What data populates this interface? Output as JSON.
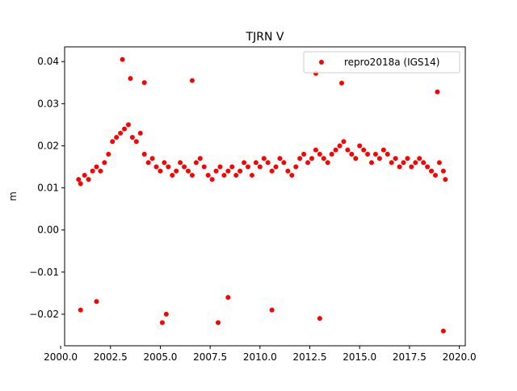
{
  "chart_data": {
    "type": "scatter",
    "title": "TJRN V",
    "xlabel": "",
    "ylabel": "m",
    "xlim": [
      2000.2,
      2020.3
    ],
    "ylim": [
      -0.0275,
      0.0435
    ],
    "xticks": [
      2000.0,
      2002.5,
      2005.0,
      2007.5,
      2010.0,
      2012.5,
      2015.0,
      2017.5,
      2020.0
    ],
    "xtick_labels": [
      "2000.0",
      "2002.5",
      "2005.0",
      "2007.5",
      "2010.0",
      "2012.5",
      "2015.0",
      "2017.5",
      "2020.0"
    ],
    "yticks": [
      -0.02,
      -0.01,
      0.0,
      0.01,
      0.02,
      0.03,
      0.04
    ],
    "ytick_labels": [
      "−0.02",
      "−0.01",
      "0.00",
      "0.01",
      "0.02",
      "0.03",
      "0.04"
    ],
    "grid": false,
    "legend_position": "upper-right",
    "series": [
      {
        "name": "repro2018a (IGS14)",
        "color": "#ff0000",
        "marker": "circle",
        "x": [
          2000.9,
          2001.0,
          2001.2,
          2001.4,
          2001.6,
          2001.8,
          2002.0,
          2002.2,
          2002.4,
          2002.6,
          2002.8,
          2003.0,
          2003.2,
          2003.4,
          2003.6,
          2003.8,
          2004.0,
          2004.2,
          2004.4,
          2004.6,
          2004.8,
          2005.0,
          2005.2,
          2005.4,
          2005.6,
          2005.8,
          2006.0,
          2006.2,
          2006.4,
          2006.6,
          2006.8,
          2007.0,
          2007.2,
          2007.4,
          2007.6,
          2007.8,
          2008.0,
          2008.2,
          2008.4,
          2008.6,
          2008.8,
          2009.0,
          2009.2,
          2009.4,
          2009.6,
          2009.8,
          2010.0,
          2010.2,
          2010.4,
          2010.6,
          2010.8,
          2011.0,
          2011.2,
          2011.4,
          2011.6,
          2011.8,
          2012.0,
          2012.2,
          2012.4,
          2012.6,
          2012.8,
          2013.0,
          2013.2,
          2013.4,
          2013.6,
          2013.8,
          2014.0,
          2014.2,
          2014.4,
          2014.6,
          2014.8,
          2015.0,
          2015.2,
          2015.4,
          2015.6,
          2015.8,
          2016.0,
          2016.2,
          2016.4,
          2016.6,
          2016.8,
          2017.0,
          2017.2,
          2017.4,
          2017.6,
          2017.8,
          2018.0,
          2018.2,
          2018.4,
          2018.6,
          2018.8,
          2019.0,
          2019.2,
          2019.3,
          2003.1,
          2006.6,
          2012.8,
          2014.1,
          2018.9,
          2001.0,
          2001.8,
          2005.1,
          2005.3,
          2007.9,
          2010.6,
          2013.0,
          2019.2,
          2008.4,
          2004.2,
          2003.5
        ],
        "y": [
          0.012,
          0.011,
          0.013,
          0.012,
          0.014,
          0.015,
          0.014,
          0.016,
          0.018,
          0.021,
          0.022,
          0.023,
          0.024,
          0.025,
          0.022,
          0.021,
          0.023,
          0.018,
          0.016,
          0.017,
          0.015,
          0.014,
          0.016,
          0.015,
          0.013,
          0.014,
          0.016,
          0.015,
          0.014,
          0.013,
          0.016,
          0.017,
          0.015,
          0.013,
          0.012,
          0.014,
          0.015,
          0.013,
          0.014,
          0.015,
          0.013,
          0.014,
          0.016,
          0.015,
          0.013,
          0.016,
          0.015,
          0.017,
          0.016,
          0.014,
          0.015,
          0.017,
          0.016,
          0.014,
          0.013,
          0.015,
          0.017,
          0.018,
          0.016,
          0.017,
          0.019,
          0.018,
          0.017,
          0.016,
          0.018,
          0.019,
          0.02,
          0.021,
          0.019,
          0.018,
          0.017,
          0.02,
          0.019,
          0.018,
          0.016,
          0.018,
          0.017,
          0.019,
          0.018,
          0.016,
          0.017,
          0.015,
          0.016,
          0.017,
          0.015,
          0.016,
          0.017,
          0.016,
          0.015,
          0.014,
          0.013,
          0.016,
          0.014,
          0.012,
          0.0405,
          0.0355,
          0.0372,
          0.0349,
          0.0328,
          -0.019,
          -0.017,
          -0.022,
          -0.02,
          -0.022,
          -0.019,
          -0.021,
          -0.024,
          -0.016,
          0.035,
          0.036
        ]
      }
    ]
  }
}
